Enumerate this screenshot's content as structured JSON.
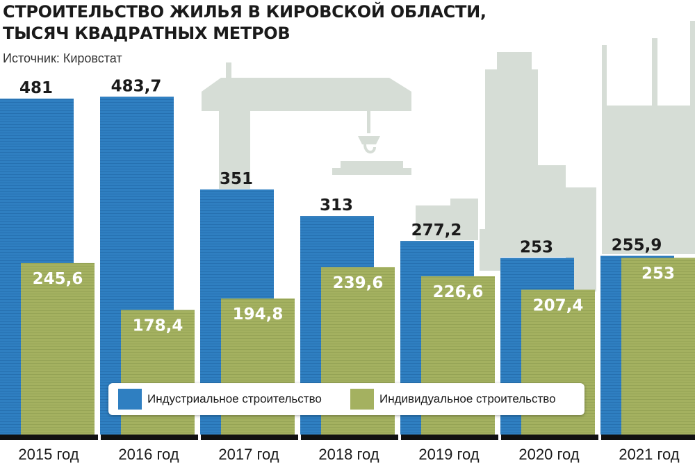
{
  "title_line1": "СТРОИТЕЛЬСТВО ЖИЛЬЯ В КИРОВСКОЙ ОБЛАСТИ,",
  "title_line2": "ТЫСЯЧ КВАДРАТНЫХ МЕТРОВ",
  "source": "Источник: Кировстат",
  "colors": {
    "industrial": "#2f7fc1",
    "individual": "#a4b160",
    "background_art": "#d6ddd6",
    "baseline": "#111111"
  },
  "legend": {
    "industrial": "Индустриальное строительство",
    "individual": "Индивидуальное строительство"
  },
  "chart_data": {
    "type": "bar",
    "categories": [
      "2015 год",
      "2016 год",
      "2017 год",
      "2018 год",
      "2019 год",
      "2020 год",
      "2021 год"
    ],
    "series": [
      {
        "name": "Индустриальное строительство",
        "values": [
          481,
          483.7,
          351,
          313,
          277.2,
          253,
          255.9
        ],
        "labels": [
          "481",
          "483,7",
          "351",
          "313",
          "277,2",
          "253",
          "255,9"
        ]
      },
      {
        "name": "Индивидуальное строительство",
        "values": [
          245.6,
          178.4,
          194.8,
          239.6,
          226.6,
          207.4,
          253
        ],
        "labels": [
          "245,6",
          "178,4",
          "194,8",
          "239,6",
          "226,6",
          "207,4",
          "253"
        ]
      }
    ],
    "grouping": "overlapping",
    "ylim": [
      0,
      490
    ],
    "legend_position": "bottom-center",
    "grid": false
  }
}
